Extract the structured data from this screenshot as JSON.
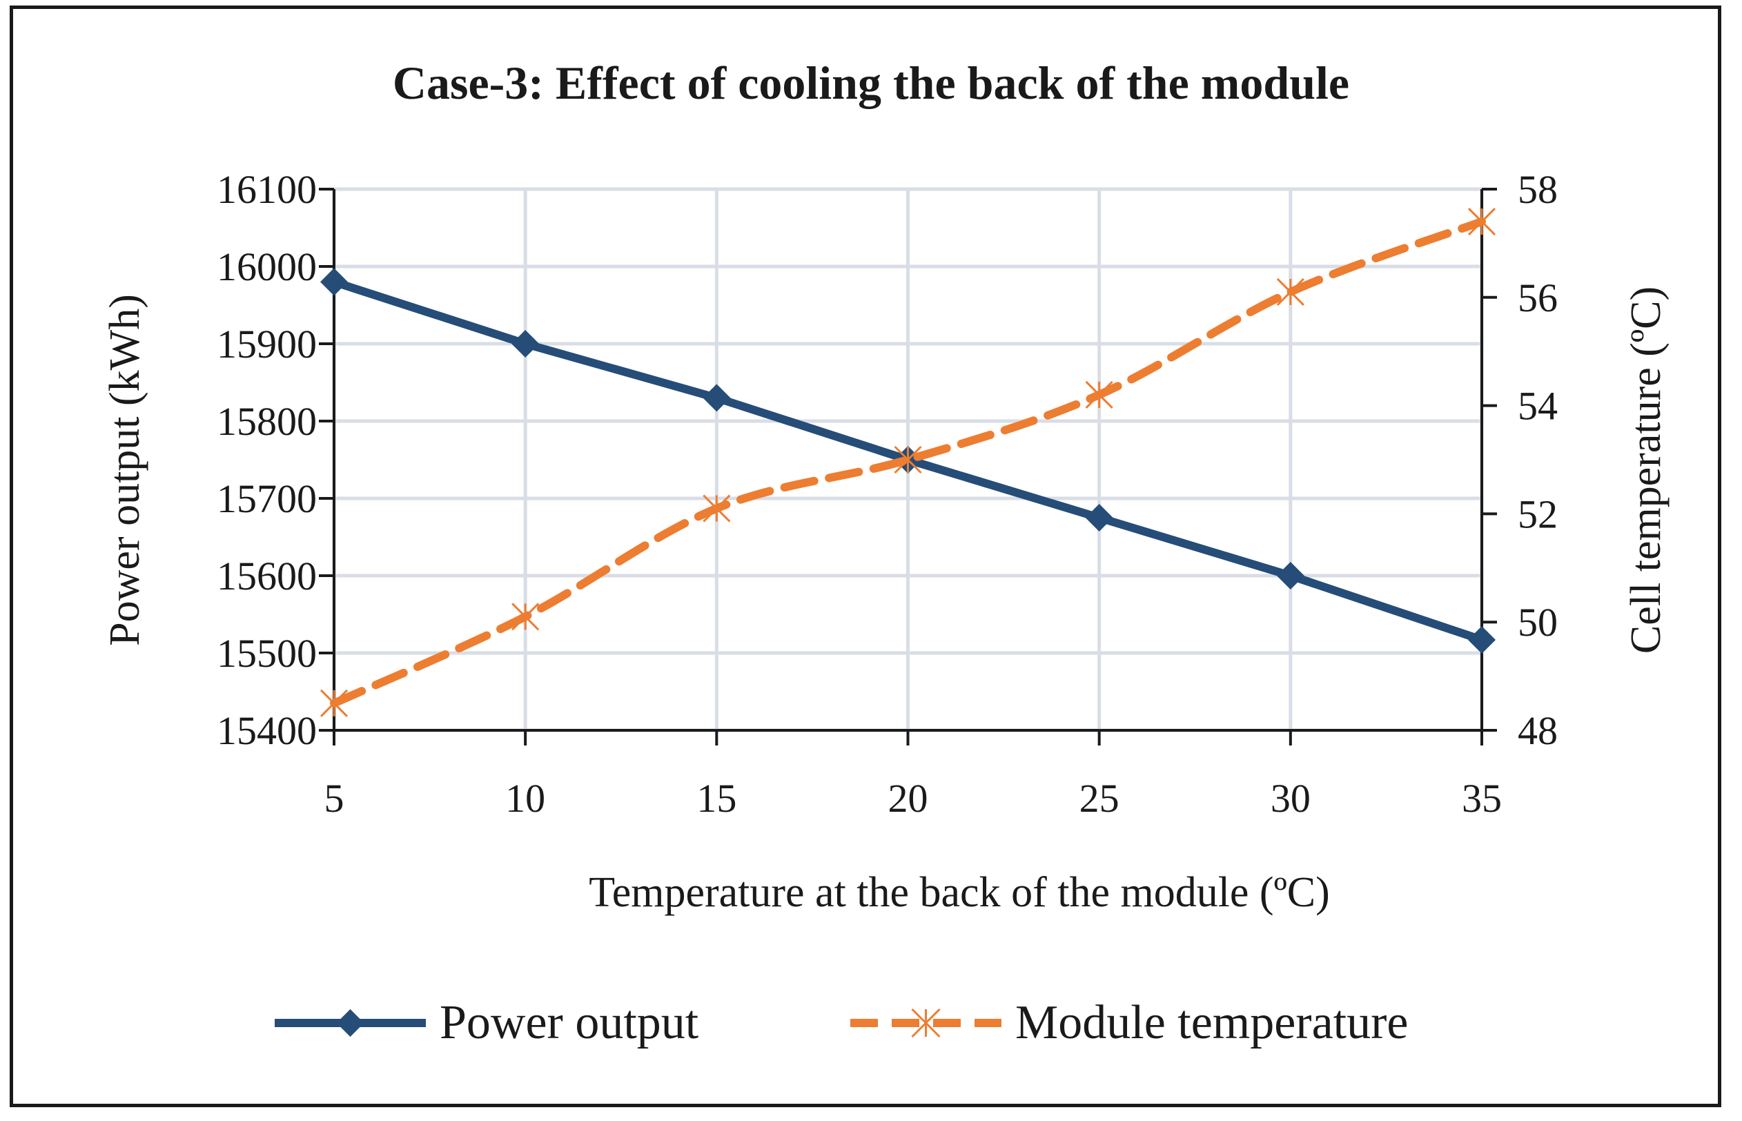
{
  "chart_data": {
    "type": "line",
    "title": "Case-3: Effect of cooling the back of the module",
    "xlabel": "Temperature at the back of the module (ºC)",
    "ylabel": "Power output (kWh)",
    "y2label": "Cell temperature (ºC)",
    "x": [
      5,
      10,
      15,
      20,
      25,
      30,
      35
    ],
    "xlim": [
      5,
      35
    ],
    "ylim": [
      15400,
      16100
    ],
    "y2lim": [
      48,
      58
    ],
    "x_ticks": [
      "5",
      "10",
      "15",
      "20",
      "25",
      "30",
      "35"
    ],
    "y_ticks": [
      "15400",
      "15500",
      "15600",
      "15700",
      "15800",
      "15900",
      "16000",
      "16100"
    ],
    "y2_ticks": [
      "48",
      "50",
      "52",
      "54",
      "56",
      "58"
    ],
    "grid": true,
    "legend_position": "bottom",
    "series": [
      {
        "name": "Power output",
        "axis": "left",
        "values": [
          15980,
          15900,
          15830,
          15750,
          15675,
          15600,
          15517
        ],
        "color": "#254d78",
        "marker": "diamond",
        "line_style": "solid"
      },
      {
        "name": "Module temperature",
        "axis": "right",
        "values": [
          48.5,
          50.1,
          52.1,
          53.0,
          54.2,
          56.1,
          57.4
        ],
        "color": "#ed7d31",
        "marker": "star",
        "line_style": "dashed"
      }
    ]
  }
}
